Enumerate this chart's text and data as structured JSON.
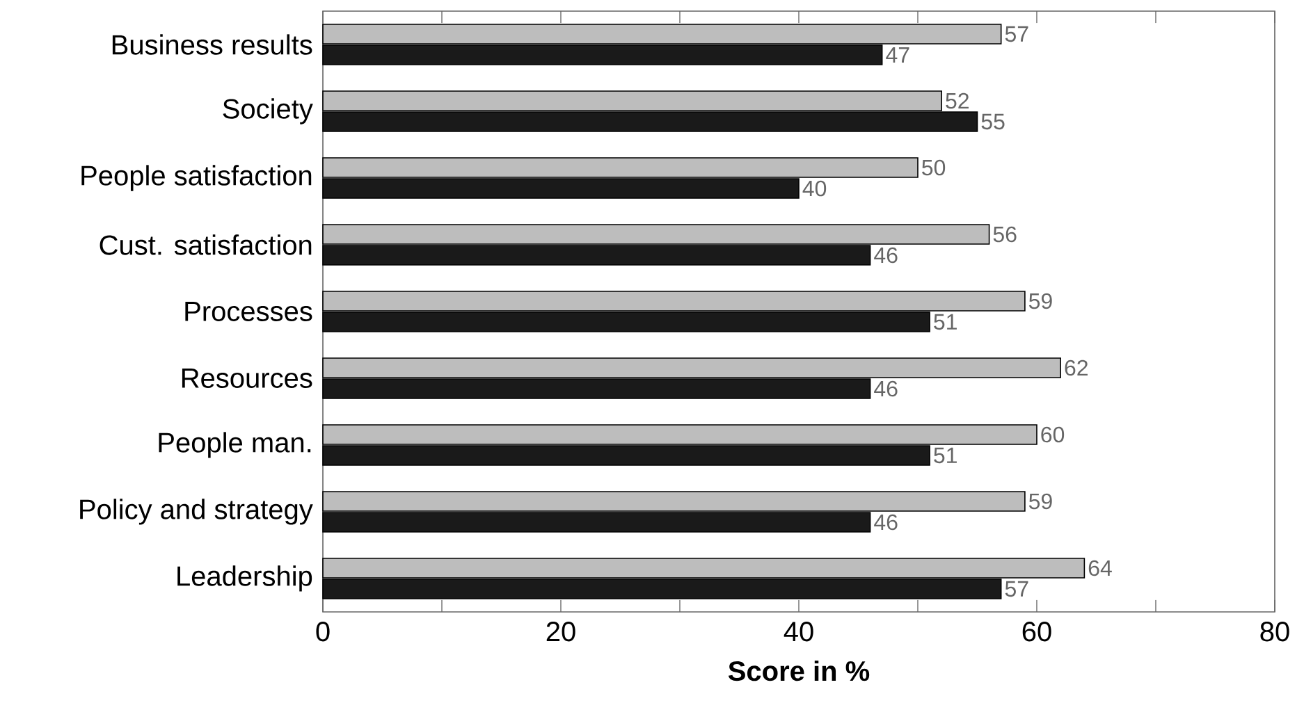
{
  "chart_data": {
    "type": "bar",
    "orientation": "horizontal",
    "xlabel": "Score in %",
    "categories": [
      "Business results",
      "Society",
      "People satisfaction",
      "Cust. satisfaction",
      "Processes",
      "Resources",
      "People man.",
      "Policy and strategy",
      "Leadership"
    ],
    "series": [
      {
        "color": "#bdbdbd",
        "values": [
          57,
          52,
          50,
          56,
          59,
          62,
          60,
          59,
          64
        ]
      },
      {
        "color": "#1a1a1a",
        "values": [
          47,
          55,
          40,
          46,
          51,
          46,
          51,
          46,
          57
        ]
      }
    ],
    "xlim": [
      0,
      80
    ],
    "xticks": [
      0,
      {
        "value": 10,
        "label": null
      },
      20,
      {
        "value": 30,
        "label": null
      },
      40,
      {
        "value": 50,
        "label": null
      },
      60,
      {
        "value": 70,
        "label": null
      },
      80
    ],
    "data_labels": true,
    "grid": false
  }
}
